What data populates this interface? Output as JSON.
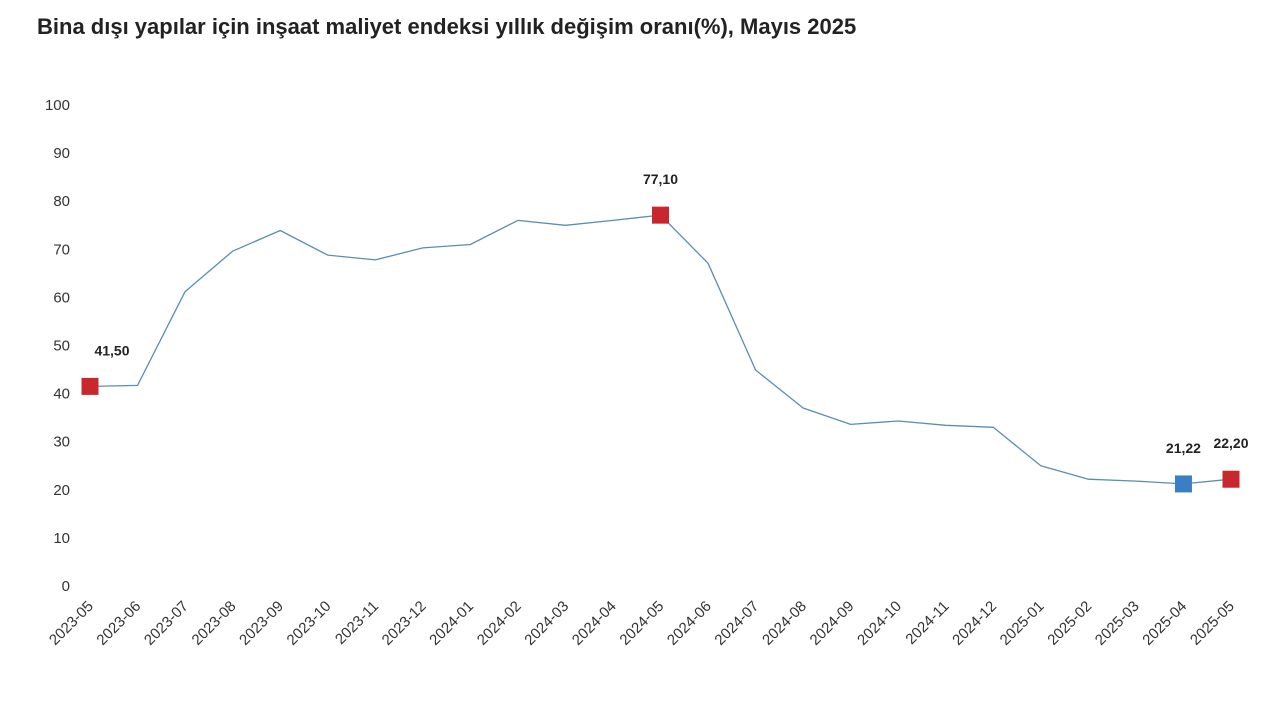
{
  "title": "Bina dışı yapılar için inşaat maliyet endeksi yıllık değişim oranı(%), Mayıs 2025",
  "chart_data": {
    "type": "line",
    "title": "Bina dışı yapılar için inşaat maliyet endeksi yıllık değişim oranı(%), Mayıs 2025",
    "xlabel": "",
    "ylabel": "",
    "ylim": [
      0,
      100
    ],
    "yticks": [
      0,
      10,
      20,
      30,
      40,
      50,
      60,
      70,
      80,
      90,
      100
    ],
    "grid": false,
    "categories": [
      "2023-05",
      "2023-06",
      "2023-07",
      "2023-08",
      "2023-09",
      "2023-10",
      "2023-11",
      "2023-12",
      "2024-01",
      "2024-02",
      "2024-03",
      "2024-04",
      "2024-05",
      "2024-06",
      "2024-07",
      "2024-08",
      "2024-09",
      "2024-10",
      "2024-11",
      "2024-12",
      "2025-01",
      "2025-02",
      "2025-03",
      "2025-04",
      "2025-05"
    ],
    "series": [
      {
        "color": "#5b8db5",
        "values": [
          41.5,
          41.7,
          61.2,
          69.6,
          73.9,
          68.8,
          67.8,
          70.3,
          71.0,
          76.0,
          75.0,
          76.0,
          77.1,
          67.1,
          44.9,
          37.0,
          33.6,
          34.3,
          33.4,
          33.0,
          25.0,
          22.2,
          21.8,
          21.22,
          22.2
        ]
      }
    ],
    "highlights": [
      {
        "index": 0,
        "label": "41,50",
        "color": "#c8282d",
        "label_position": "top-right"
      },
      {
        "index": 12,
        "label": "77,10",
        "color": "#c8282d",
        "label_position": "top"
      },
      {
        "index": 23,
        "label": "21,22",
        "color": "#3a7fc4",
        "label_position": "top"
      },
      {
        "index": 24,
        "label": "22,20",
        "color": "#c8282d",
        "label_position": "top"
      }
    ]
  }
}
